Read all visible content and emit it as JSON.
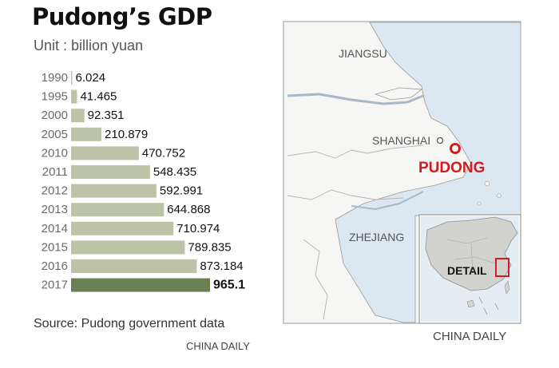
{
  "title": "Pudong’s GDP",
  "unit_label": "Unit : billion yuan",
  "source": "Source: Pudong government data",
  "credit_chart": "CHINA DAILY",
  "credit_map": "CHINA DAILY",
  "colors": {
    "bar": "#bcc3a7",
    "bar_highlight": "#6b7f55",
    "pudong_marker": "#d71920",
    "sea": "#dbe7f1",
    "land": "#f6f6f4"
  },
  "chart_data": {
    "type": "bar",
    "orientation": "horizontal",
    "title": "Pudong’s GDP",
    "unit": "Unit : billion yuan",
    "categories": [
      "1990",
      "1995",
      "2000",
      "2005",
      "2010",
      "2011",
      "2012",
      "2013",
      "2014",
      "2015",
      "2016",
      "2017"
    ],
    "values": [
      6.024,
      41.465,
      92.351,
      210.879,
      470.752,
      548.435,
      592.991,
      644.868,
      710.974,
      789.835,
      873.184,
      965.1
    ],
    "value_labels": [
      "6.024",
      "41.465",
      "92.351",
      "210.879",
      "470.752",
      "548.435",
      "592.991",
      "644.868",
      "710.974",
      "789.835",
      "873.184",
      "965.1"
    ],
    "highlight": "2017",
    "grid": false
  },
  "map": {
    "labels": {
      "jiangsu": "JIANGSU",
      "shanghai": "SHANGHAI",
      "pudong": "PUDONG",
      "zhejiang": "ZHEJIANG",
      "detail": "DETAIL"
    }
  }
}
